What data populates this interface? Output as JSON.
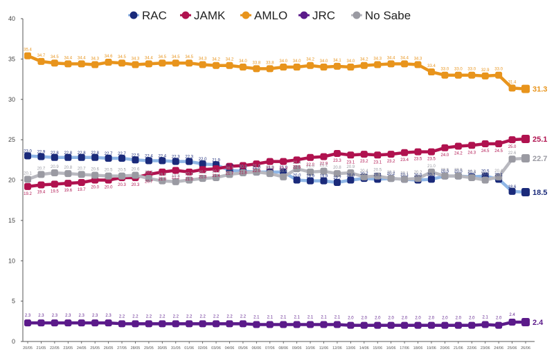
{
  "chart_data": {
    "type": "line",
    "title": "",
    "xlabel": "",
    "ylabel": "",
    "ylim": [
      0,
      40
    ],
    "yticks": [
      0,
      5,
      10,
      15,
      20,
      25,
      30,
      35,
      40
    ],
    "grid": false,
    "legend_position": "top-center",
    "categories": [
      "20/05",
      "21/05",
      "22/05",
      "23/05",
      "24/05",
      "25/05",
      "26/05",
      "27/05",
      "28/05",
      "29/05",
      "30/05",
      "31/05",
      "01/06",
      "02/06",
      "03/06",
      "04/06",
      "05/06",
      "06/06",
      "07/06",
      "08/06",
      "09/06",
      "10/06",
      "11/06",
      "12/06",
      "13/06",
      "14/06",
      "15/06",
      "16/06",
      "17/06",
      "18/06",
      "19/06",
      "20/06",
      "21/06",
      "22/06",
      "23/06",
      "24/06",
      "25/06",
      "26/06"
    ],
    "series": [
      {
        "name": "RAC",
        "color": "#1a2a7a",
        "line_color": "#8fb6e6",
        "values": [
          23.0,
          22.9,
          22.8,
          22.8,
          22.8,
          22.8,
          22.7,
          22.7,
          22.5,
          22.4,
          22.4,
          22.3,
          22.3,
          22.0,
          21.9,
          21.2,
          21.1,
          21.0,
          21.0,
          21.0,
          20.0,
          19.9,
          19.9,
          19.7,
          20.0,
          20.2,
          20.1,
          20.2,
          20.1,
          20.0,
          20.1,
          20.5,
          20.5,
          20.4,
          20.5,
          20.1,
          18.6,
          18.5
        ]
      },
      {
        "name": "JAMK",
        "color": "#b0124f",
        "line_color": "#b0124f",
        "values": [
          19.2,
          19.4,
          19.5,
          19.6,
          19.7,
          20.0,
          20.0,
          20.3,
          20.3,
          20.7,
          21.0,
          21.2,
          21.0,
          21.3,
          21.4,
          21.7,
          21.8,
          22.0,
          22.3,
          22.3,
          22.5,
          22.8,
          22.9,
          23.3,
          23.1,
          23.2,
          23.1,
          23.2,
          23.4,
          23.5,
          23.5,
          24.0,
          24.2,
          24.3,
          24.5,
          24.5,
          25.0,
          25.1
        ]
      },
      {
        "name": "AMLO",
        "color": "#e8941c",
        "line_color": "#e8941c",
        "values": [
          35.4,
          34.7,
          34.5,
          34.4,
          34.4,
          34.3,
          34.6,
          34.5,
          34.3,
          34.4,
          34.5,
          34.5,
          34.5,
          34.3,
          34.2,
          34.2,
          34.0,
          33.8,
          33.8,
          34.0,
          34.0,
          34.2,
          34.0,
          34.1,
          34.0,
          34.2,
          34.3,
          34.4,
          34.4,
          34.3,
          33.4,
          33.0,
          33.0,
          33.0,
          32.9,
          33.0,
          31.4,
          31.3
        ]
      },
      {
        "name": "JRC",
        "color": "#5b1a8a",
        "line_color": "#5b1a8a",
        "values": [
          2.3,
          2.3,
          2.3,
          2.3,
          2.3,
          2.3,
          2.3,
          2.2,
          2.2,
          2.2,
          2.2,
          2.2,
          2.2,
          2.2,
          2.2,
          2.2,
          2.2,
          2.1,
          2.1,
          2.1,
          2.1,
          2.1,
          2.1,
          2.1,
          2.0,
          2.0,
          2.0,
          2.0,
          2.0,
          2.0,
          2.0,
          2.0,
          2.0,
          2.0,
          2.1,
          2.0,
          2.4,
          2.4
        ]
      },
      {
        "name": "No Sabe",
        "color": "#9a9aa2",
        "line_color": "#b9b9c0",
        "values": [
          20.1,
          20.7,
          20.9,
          20.8,
          20.7,
          20.6,
          20.5,
          20.5,
          20.6,
          20.2,
          19.9,
          19.8,
          20.0,
          20.2,
          20.3,
          20.7,
          20.9,
          21.0,
          20.8,
          20.4,
          21.4,
          21.0,
          21.1,
          20.8,
          20.9,
          20.4,
          20.5,
          20.2,
          20.1,
          20.2,
          21.0,
          20.5,
          20.5,
          20.3,
          20.0,
          20.4,
          22.6,
          22.7
        ]
      }
    ]
  }
}
